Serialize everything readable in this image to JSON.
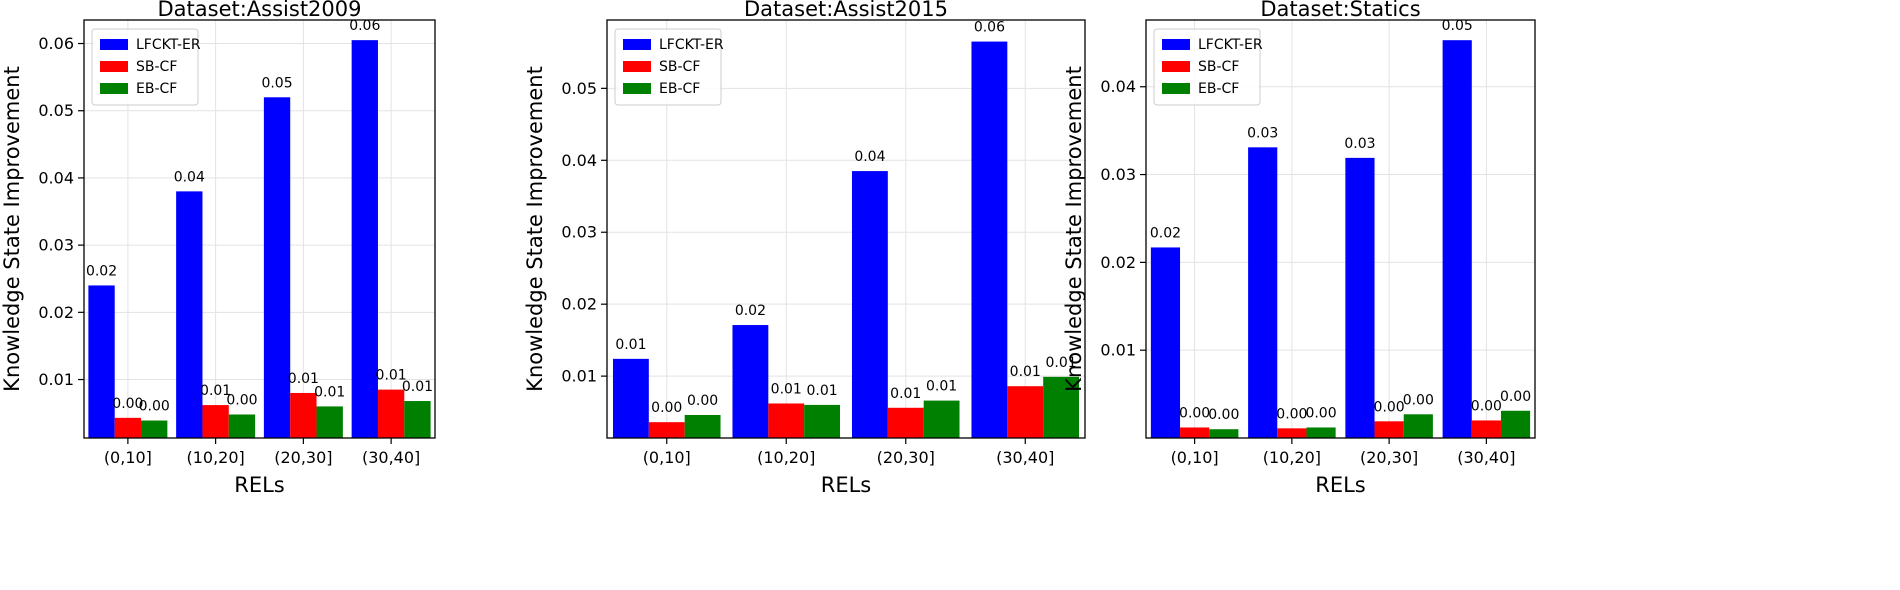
{
  "chart_data": [
    {
      "type": "bar",
      "title": "Dataset:Assist2009",
      "xlabel": "RELs",
      "ylabel": "Knowledge State Improvement",
      "categories": [
        "(0,10]",
        "(10,20]",
        "(20,30]",
        "(30,40]"
      ],
      "ylim": [
        0.0013,
        0.0635
      ],
      "yticks": [
        0.01,
        0.02,
        0.03,
        0.04,
        0.05,
        0.06
      ],
      "ytick_labels": [
        "0.01",
        "0.02",
        "0.03",
        "0.04",
        "0.05",
        "0.06"
      ],
      "grid": true,
      "legend_position": "top-left",
      "series": [
        {
          "name": "LFCKT-ER",
          "color": "#0000ff",
          "values": [
            0.024,
            0.038,
            0.052,
            0.0605
          ],
          "labels": [
            "0.02",
            "0.04",
            "0.05",
            "0.06"
          ]
        },
        {
          "name": "SB-CF",
          "color": "#ff0000",
          "values": [
            0.0043,
            0.0062,
            0.008,
            0.0085
          ],
          "labels": [
            "0.00",
            "0.01",
            "0.01",
            "0.01"
          ]
        },
        {
          "name": "EB-CF",
          "color": "#008000",
          "values": [
            0.0039,
            0.0048,
            0.006,
            0.0068
          ],
          "labels": [
            "0.00",
            "0.00",
            "0.01",
            "0.01"
          ]
        }
      ]
    },
    {
      "type": "bar",
      "title": "Dataset:Assist2015",
      "xlabel": "RELs",
      "ylabel": "Knowledge State Improvement",
      "categories": [
        "(0,10]",
        "(10,20]",
        "(20,30]",
        "(30,40]"
      ],
      "ylim": [
        0.0014,
        0.0595
      ],
      "yticks": [
        0.01,
        0.02,
        0.03,
        0.04,
        0.05
      ],
      "ytick_labels": [
        "0.01",
        "0.02",
        "0.03",
        "0.04",
        "0.05"
      ],
      "grid": true,
      "legend_position": "top-left",
      "series": [
        {
          "name": "LFCKT-ER",
          "color": "#0000ff",
          "values": [
            0.0124,
            0.0171,
            0.0385,
            0.0565
          ],
          "labels": [
            "0.01",
            "0.02",
            "0.04",
            "0.06"
          ]
        },
        {
          "name": "SB-CF",
          "color": "#ff0000",
          "values": [
            0.0036,
            0.0062,
            0.0056,
            0.0086
          ],
          "labels": [
            "0.00",
            "0.01",
            "0.01",
            "0.01"
          ]
        },
        {
          "name": "EB-CF",
          "color": "#008000",
          "values": [
            0.0046,
            0.006,
            0.0066,
            0.0099
          ],
          "labels": [
            "0.00",
            "0.01",
            "0.01",
            "0.01"
          ]
        }
      ]
    },
    {
      "type": "bar",
      "title": "Dataset:Statics",
      "xlabel": "RELs",
      "ylabel": "Knowledge State Improvement",
      "categories": [
        "(0,10]",
        "(10,20]",
        "(20,30]",
        "(30,40]"
      ],
      "ylim": [
        0.0,
        0.0476
      ],
      "yticks": [
        0.01,
        0.02,
        0.03,
        0.04
      ],
      "ytick_labels": [
        "0.01",
        "0.02",
        "0.03",
        "0.04"
      ],
      "grid": true,
      "legend_position": "top-left",
      "series": [
        {
          "name": "LFCKT-ER",
          "color": "#0000ff",
          "values": [
            0.0217,
            0.0331,
            0.0319,
            0.0453
          ],
          "labels": [
            "0.02",
            "0.03",
            "0.03",
            "0.05"
          ]
        },
        {
          "name": "SB-CF",
          "color": "#ff0000",
          "values": [
            0.0012,
            0.0011,
            0.0019,
            0.002
          ],
          "labels": [
            "0.00",
            "0.00",
            "0.00",
            "0.00"
          ]
        },
        {
          "name": "EB-CF",
          "color": "#008000",
          "values": [
            0.001,
            0.0012,
            0.0027,
            0.0031
          ],
          "labels": [
            "0.00",
            "0.00",
            "0.00",
            "0.00"
          ]
        }
      ]
    }
  ]
}
